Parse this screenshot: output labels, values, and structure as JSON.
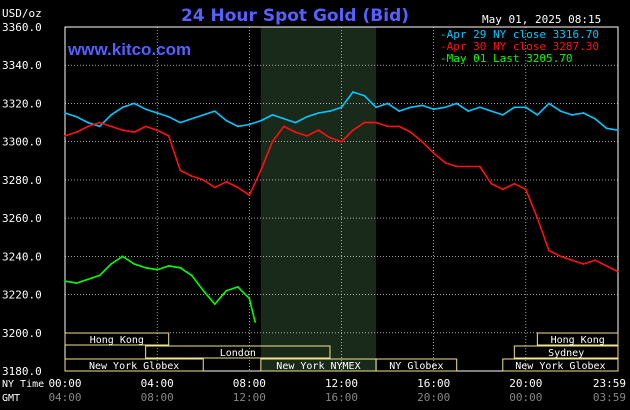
{
  "header": {
    "title": "24 Hour Spot Gold (Bid)",
    "unit": "USD/oz",
    "timestamp": "May 01, 2025 08:15",
    "watermark": "www.kitco.com"
  },
  "colors": {
    "background": "#000000",
    "grid": "#ffffff",
    "title": "#5560ff",
    "apr29": "#00c8ff",
    "apr30": "#ff1010",
    "may01": "#00ff00",
    "session_box": "#f0e68c",
    "nymex_shade": "#1a2a1a"
  },
  "legend": [
    {
      "label": "Apr 29 NY close 3316.70",
      "color": "#00c8ff"
    },
    {
      "label": "Apr 30 NY close 3287.30",
      "color": "#ff1010"
    },
    {
      "label": "May 01 Last 3205.70",
      "color": "#00ff00"
    }
  ],
  "sessions": [
    {
      "label": "Hong Kong",
      "start": 0.0,
      "end": 4.5
    },
    {
      "label": "Hong Kong",
      "start": 20.5,
      "end": 24.0
    },
    {
      "label": "London",
      "start": 3.5,
      "end": 11.5
    },
    {
      "label": "Sydney",
      "start": 19.5,
      "end": 24.0
    },
    {
      "label": "New York Globex",
      "start": 0.0,
      "end": 6.0
    },
    {
      "label": "New York NYMEX",
      "start": 8.5,
      "end": 13.5
    },
    {
      "label": "NY Globex",
      "start": 13.5,
      "end": 17.0
    },
    {
      "label": "New York Globex",
      "start": 19.0,
      "end": 24.0
    }
  ],
  "axis_bottom": {
    "ny_time_label": "NY Time",
    "gmt_label": "GMT",
    "ny_ticks": [
      "00:00",
      "04:00",
      "08:00",
      "12:00",
      "16:00",
      "20:00",
      "23:59"
    ],
    "gmt_ticks": [
      "04:00",
      "08:00",
      "12:00",
      "16:00",
      "20:00",
      "00:00",
      "03:59"
    ]
  },
  "chart_data": {
    "type": "line",
    "title": "24 Hour Spot Gold (Bid)",
    "ylabel": "USD/oz",
    "xlabel": "NY Time",
    "xlim": [
      0,
      24
    ],
    "ylim": [
      3180,
      3360
    ],
    "yticks": [
      3180,
      3200,
      3220,
      3240,
      3260,
      3280,
      3300,
      3320,
      3340,
      3360
    ],
    "xticks": [
      0,
      4,
      8,
      12,
      16,
      20,
      23.98
    ],
    "nymex_shade": [
      8.5,
      13.5
    ],
    "legend_position": "top-right",
    "grid": true,
    "series": [
      {
        "name": "Apr 29 NY close 3316.70",
        "color": "#00c8ff",
        "x": [
          0.0,
          0.5,
          1.0,
          1.5,
          2.0,
          2.5,
          3.0,
          3.5,
          4.0,
          4.5,
          5.0,
          5.5,
          6.0,
          6.5,
          7.0,
          7.5,
          8.0,
          8.5,
          9.0,
          9.5,
          10.0,
          10.5,
          11.0,
          11.5,
          12.0,
          12.5,
          13.0,
          13.5,
          14.0,
          14.5,
          15.0,
          15.5,
          16.0,
          16.5,
          17.0,
          17.5,
          18.0,
          18.5,
          19.0,
          19.5,
          20.0,
          20.5,
          21.0,
          21.5,
          22.0,
          22.5,
          23.0,
          23.5,
          23.98
        ],
        "y": [
          3315,
          3313,
          3310,
          3308,
          3314,
          3318,
          3320,
          3317,
          3315,
          3313,
          3310,
          3312,
          3314,
          3316,
          3311,
          3308,
          3309,
          3311,
          3314,
          3312,
          3310,
          3313,
          3315,
          3316,
          3318,
          3326,
          3324,
          3318,
          3320,
          3316,
          3318,
          3319,
          3317,
          3318,
          3320,
          3316,
          3318,
          3316,
          3314,
          3318,
          3318,
          3314,
          3320,
          3316,
          3314,
          3315,
          3312,
          3307,
          3306
        ]
      },
      {
        "name": "Apr 30 NY close 3287.30",
        "color": "#ff1010",
        "x": [
          0.0,
          0.5,
          1.0,
          1.5,
          2.0,
          2.5,
          3.0,
          3.5,
          4.0,
          4.5,
          5.0,
          5.5,
          6.0,
          6.5,
          7.0,
          7.5,
          8.0,
          8.5,
          9.0,
          9.5,
          10.0,
          10.5,
          11.0,
          11.5,
          12.0,
          12.5,
          13.0,
          13.5,
          14.0,
          14.5,
          15.0,
          15.5,
          16.0,
          16.5,
          17.0,
          17.5,
          18.0,
          18.5,
          19.0,
          19.5,
          20.0,
          20.5,
          21.0,
          21.5,
          22.0,
          22.5,
          23.0,
          23.5,
          23.98
        ],
        "y": [
          3303,
          3305,
          3308,
          3310,
          3308,
          3306,
          3305,
          3308,
          3306,
          3303,
          3285,
          3282,
          3280,
          3276,
          3279,
          3276,
          3272,
          3285,
          3300,
          3308,
          3305,
          3303,
          3306,
          3302,
          3300,
          3306,
          3310,
          3310,
          3308,
          3308,
          3305,
          3300,
          3294,
          3289,
          3287,
          3287,
          3287,
          3278,
          3275,
          3278,
          3275,
          3260,
          3243,
          3240,
          3238,
          3236,
          3238,
          3235,
          3232
        ]
      },
      {
        "name": "May 01 Last 3205.70",
        "color": "#00ff00",
        "x": [
          0.0,
          0.5,
          1.0,
          1.5,
          2.0,
          2.5,
          3.0,
          3.5,
          4.0,
          4.5,
          5.0,
          5.5,
          6.0,
          6.5,
          7.0,
          7.5,
          8.0,
          8.25
        ],
        "y": [
          3227,
          3226,
          3228,
          3230,
          3236,
          3240,
          3236,
          3234,
          3233,
          3235,
          3234,
          3230,
          3222,
          3215,
          3222,
          3224,
          3218,
          3205.7
        ]
      }
    ]
  }
}
